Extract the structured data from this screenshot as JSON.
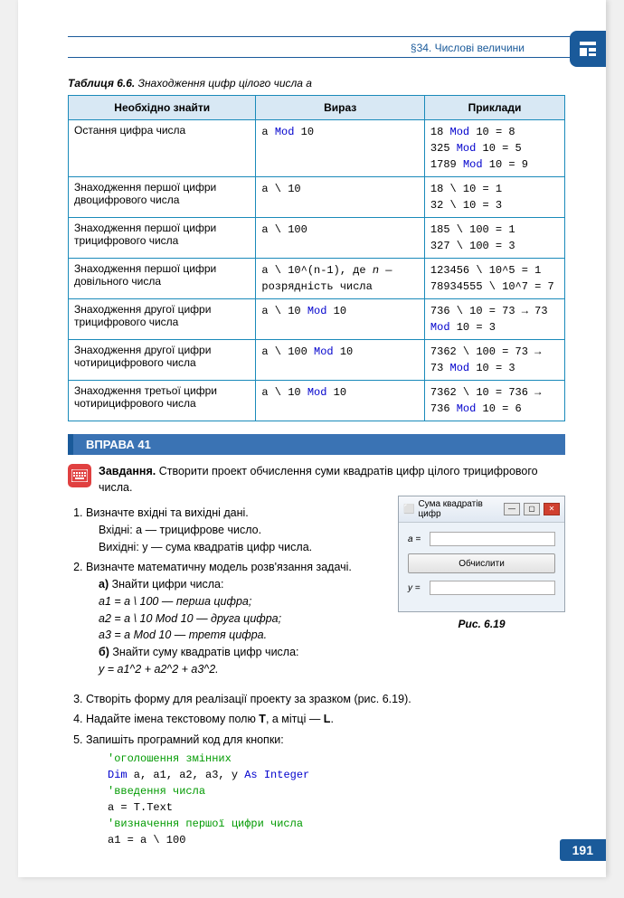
{
  "header": {
    "section": "§34. Числові величини"
  },
  "table": {
    "caption_bold": "Таблиця 6.6.",
    "caption_rest": " Знаходження цифр цілого числа a",
    "columns": [
      "Необхідно знайти",
      "Вираз",
      "Приклади"
    ],
    "rows": [
      {
        "need": "Остання цифра числа",
        "expr": [
          {
            "t": "a ",
            "k": ""
          },
          {
            "t": "Mod",
            "k": "mod"
          },
          {
            "t": " 10",
            "k": ""
          }
        ],
        "ex_lines": [
          [
            {
              "t": "18 ",
              "k": ""
            },
            {
              "t": "Mod",
              "k": "mod"
            },
            {
              "t": " 10 = 8",
              "k": ""
            }
          ],
          [
            {
              "t": "325 ",
              "k": ""
            },
            {
              "t": "Mod",
              "k": "mod"
            },
            {
              "t": " 10 = 5",
              "k": ""
            }
          ],
          [
            {
              "t": "1789 ",
              "k": ""
            },
            {
              "t": "Mod",
              "k": "mod"
            },
            {
              "t": " 10 = 9",
              "k": ""
            }
          ]
        ]
      },
      {
        "need": "Знаходження першої цифри двоцифрового числа",
        "expr": [
          {
            "t": "a \\ 10",
            "k": ""
          }
        ],
        "ex_lines": [
          [
            {
              "t": "18 \\ 10 = 1",
              "k": ""
            }
          ],
          [
            {
              "t": "32 \\ 10 = 3",
              "k": ""
            }
          ]
        ]
      },
      {
        "need": "Знаходження першої цифри трицифрового числа",
        "expr": [
          {
            "t": "a \\ 100",
            "k": ""
          }
        ],
        "ex_lines": [
          [
            {
              "t": "185 \\ 100 = 1",
              "k": ""
            }
          ],
          [
            {
              "t": "327 \\ 100 = 3",
              "k": ""
            }
          ]
        ]
      },
      {
        "need": "Знаходження першої цифри довільного числа",
        "expr": [
          {
            "t": "a \\ 10^(n-1), де ",
            "k": ""
          },
          {
            "t": "n",
            "k": "ital"
          },
          {
            "t": " — розрядність числа",
            "k": ""
          }
        ],
        "ex_lines": [
          [
            {
              "t": "123456 \\ 10^5 = 1",
              "k": ""
            }
          ],
          [
            {
              "t": "78934555 \\ 10^7 = 7",
              "k": ""
            }
          ]
        ]
      },
      {
        "need": "Знаходження другої цифри трицифрового числа",
        "expr": [
          {
            "t": "a \\ 10 ",
            "k": ""
          },
          {
            "t": "Mod",
            "k": "mod"
          },
          {
            "t": " 10",
            "k": ""
          }
        ],
        "ex_lines": [
          [
            {
              "t": "736 \\ 10 = 73 → 73 ",
              "k": ""
            },
            {
              "t": "Mod",
              "k": "mod"
            },
            {
              "t": " 10 = 3",
              "k": ""
            }
          ]
        ]
      },
      {
        "need": "Знаходження другої цифри чотирицифрового числа",
        "expr": [
          {
            "t": "a \\ 100 ",
            "k": ""
          },
          {
            "t": "Mod",
            "k": "mod"
          },
          {
            "t": " 10",
            "k": ""
          }
        ],
        "ex_lines": [
          [
            {
              "t": "7362 \\ 100 = 73 → 73 ",
              "k": ""
            },
            {
              "t": "Mod",
              "k": "mod"
            },
            {
              "t": " 10 = 3",
              "k": ""
            }
          ]
        ]
      },
      {
        "need": "Знаходження третьої цифри чотирицифрового числа",
        "expr": [
          {
            "t": "a \\ 10 ",
            "k": ""
          },
          {
            "t": "Mod",
            "k": "mod"
          },
          {
            "t": " 10",
            "k": ""
          }
        ],
        "ex_lines": [
          [
            {
              "t": "7362 \\ 10 = 736 → 736 ",
              "k": ""
            },
            {
              "t": "Mod",
              "k": "mod"
            },
            {
              "t": " 10 = 6",
              "k": ""
            }
          ]
        ]
      }
    ]
  },
  "exercise": {
    "label": "ВПРАВА 41"
  },
  "task": {
    "bold": "Завдання.",
    "text": " Створити проект обчислення суми квадратів цифр цілого трицифрового числа."
  },
  "window": {
    "title": "Сума квадратів цифр",
    "label_a": "a =",
    "button": "Обчислити",
    "label_y": "y ="
  },
  "fig_caption": "Рис. 6.19",
  "steps": {
    "s1": "Визначте вхідні та вихідні дані.",
    "s1a": "Вхідні: a — трицифрове число.",
    "s1b": "Вихідні: y — сума квадратів цифр числа.",
    "s2": "Визначте математичну модель розв'язання задачі.",
    "s2a_b": "а)",
    "s2a": " Знайти цифри числа:",
    "s2a1": "a1 = a \\ 100 — перша цифра;",
    "s2a2": "a2 = a \\ 10 Mod 10 — друга цифра;",
    "s2a3": "a3 = a Mod 10 — третя цифра.",
    "s2b_b": "б)",
    "s2b": " Знайти суму квадратів цифр числа:",
    "s2b1": "y = a1^2 + a2^2 + a3^2.",
    "s3": "Створіть форму для реалізації проекту за зразком (рис. 6.19).",
    "s4_a": "Надайте імена текстовому полю ",
    "s4_b": "T",
    "s4_c": ", а мітці — ",
    "s4_d": "L",
    "s4_e": ".",
    "s5": "Запишіть програмний код для кнопки:"
  },
  "code": {
    "l1": "'оголошення змінних",
    "l2a": "Dim",
    "l2b": " a, a1, a2, a3, y ",
    "l2c": "As Integer",
    "l3": "'введення числа",
    "l4": "a = T.Text",
    "l5": "'визначення першої цифри числа",
    "l6": "a1 = a \\ 100"
  },
  "page_number": "191"
}
